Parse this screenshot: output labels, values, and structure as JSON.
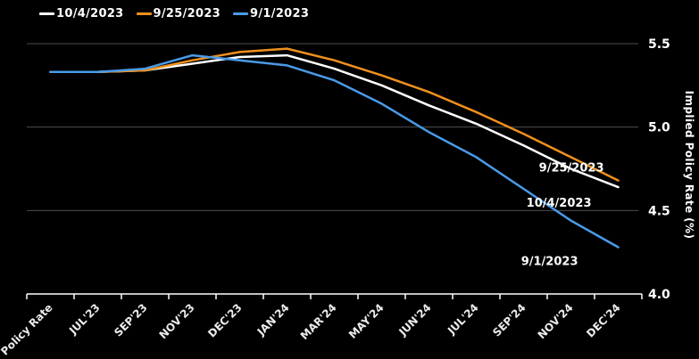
{
  "chart_data": {
    "type": "line",
    "title": "",
    "xlabel": "",
    "ylabel": "Implied Policy Rate (%)",
    "background_color": "#000000",
    "gridline_color": "#4d4d4d",
    "axis_color": "#ffffff",
    "grid": "horizontal",
    "legend_position": "top-left",
    "ylim": [
      4.0,
      5.5
    ],
    "yticks": [
      4.0,
      4.5,
      5.0,
      5.5
    ],
    "ytick_labels": [
      "4.0",
      "4.5",
      "5.0",
      "5.5"
    ],
    "categories": [
      "Policy Rate",
      "JUL'23",
      "SEP'23",
      "NOV'23",
      "DEC'23",
      "JAN'24",
      "MAR'24",
      "MAY'24",
      "JUN'24",
      "JUL'24",
      "SEP'24",
      "NOV'24",
      "DEC'24"
    ],
    "series": [
      {
        "name": "10/4/2023",
        "color": "#FFFFFF",
        "values": [
          5.33,
          5.33,
          5.34,
          5.38,
          5.42,
          5.43,
          5.35,
          5.25,
          5.13,
          5.02,
          4.89,
          4.75,
          4.64
        ],
        "end_label": "10/4/2023"
      },
      {
        "name": "9/25/2023",
        "color": "#F0901E",
        "values": [
          5.33,
          5.33,
          5.34,
          5.4,
          5.45,
          5.47,
          5.4,
          5.31,
          5.21,
          5.09,
          4.96,
          4.82,
          4.68
        ],
        "end_label": "9/25/2023"
      },
      {
        "name": "9/1/2023",
        "color": "#4A9BE8",
        "values": [
          5.33,
          5.33,
          5.35,
          5.43,
          5.4,
          5.37,
          5.28,
          5.14,
          4.97,
          4.82,
          4.63,
          4.44,
          4.28
        ],
        "end_label": "9/1/2023"
      }
    ]
  }
}
